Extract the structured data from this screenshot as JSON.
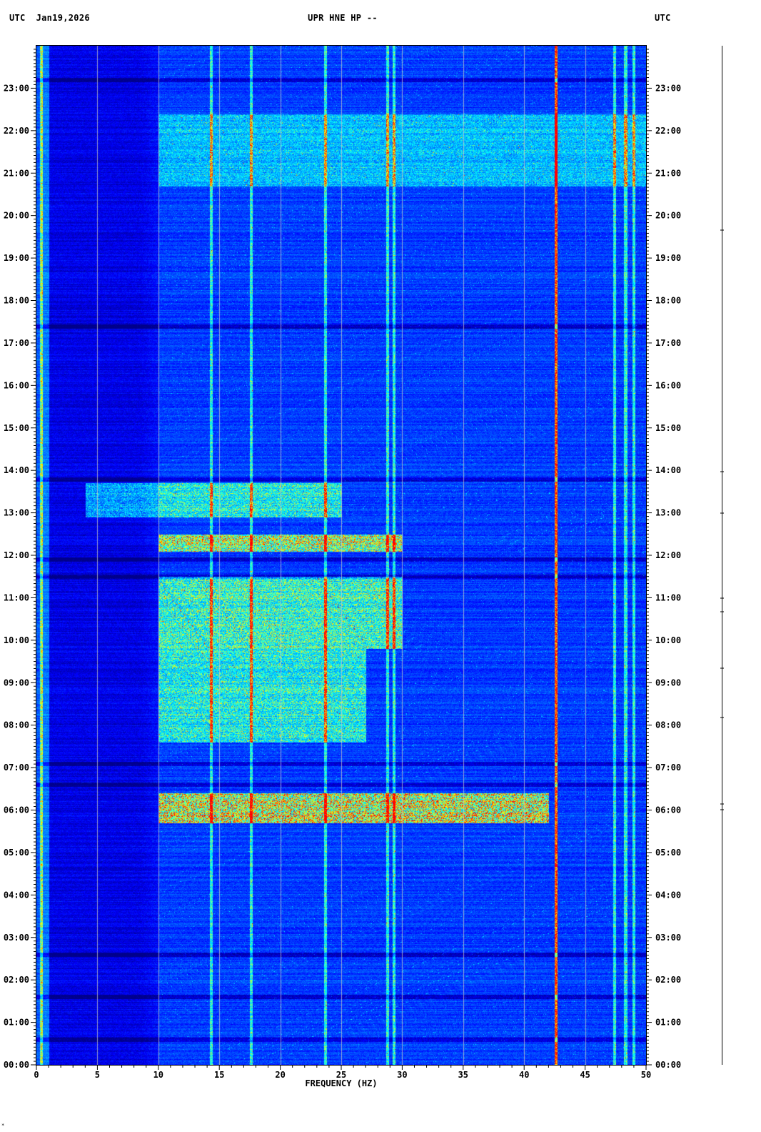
{
  "header": {
    "left": "UTC  Jan19,2026",
    "center": "UPR HNE HP --",
    "right": "UTC"
  },
  "footnote": "*",
  "chart_data": {
    "type": "heatmap",
    "title": "UPR HNE HP --",
    "date": "Jan19,2026",
    "xlabel": "FREQUENCY (HZ)",
    "ylabel": "UTC",
    "xlim": [
      0,
      50
    ],
    "ylim": [
      "00:00",
      "24:00"
    ],
    "x_ticks": [
      "0",
      "5",
      "10",
      "15",
      "20",
      "25",
      "30",
      "35",
      "40",
      "45",
      "50"
    ],
    "y_ticks": [
      "00:00",
      "01:00",
      "02:00",
      "03:00",
      "04:00",
      "05:00",
      "06:00",
      "07:00",
      "08:00",
      "09:00",
      "10:00",
      "11:00",
      "12:00",
      "13:00",
      "14:00",
      "15:00",
      "16:00",
      "17:00",
      "18:00",
      "19:00",
      "20:00",
      "21:00",
      "22:00",
      "23:00"
    ],
    "grid": "vertical lines every 5 Hz",
    "colormap": [
      "#00008a",
      "#0000ff",
      "#0090ff",
      "#00ffff",
      "#ffff00",
      "#ff0000"
    ],
    "persistent_lines_hz": [
      0.4,
      14.3,
      17.6,
      23.7,
      28.8,
      29.3,
      42.6,
      47.4,
      48.3,
      49.0
    ],
    "dark_gaps_hours": [
      0.6,
      1.6,
      2.6,
      6.6,
      7.1,
      11.5,
      11.9,
      13.8,
      17.4,
      23.2
    ],
    "energetic_bands_hours": [
      {
        "from": 5.7,
        "to": 6.4,
        "fmin": 10,
        "fmax": 42,
        "level": 0.75
      },
      {
        "from": 7.6,
        "to": 9.8,
        "fmin": 10,
        "fmax": 27,
        "level": 0.55
      },
      {
        "from": 9.8,
        "to": 11.5,
        "fmin": 10,
        "fmax": 30,
        "level": 0.6
      },
      {
        "from": 12.1,
        "to": 12.5,
        "fmin": 10,
        "fmax": 30,
        "level": 0.7
      },
      {
        "from": 12.9,
        "to": 13.7,
        "fmin": 4,
        "fmax": 25,
        "level": 0.55
      },
      {
        "from": 20.7,
        "to": 22.4,
        "fmin": 10,
        "fmax": 50,
        "level": 0.45
      }
    ]
  }
}
